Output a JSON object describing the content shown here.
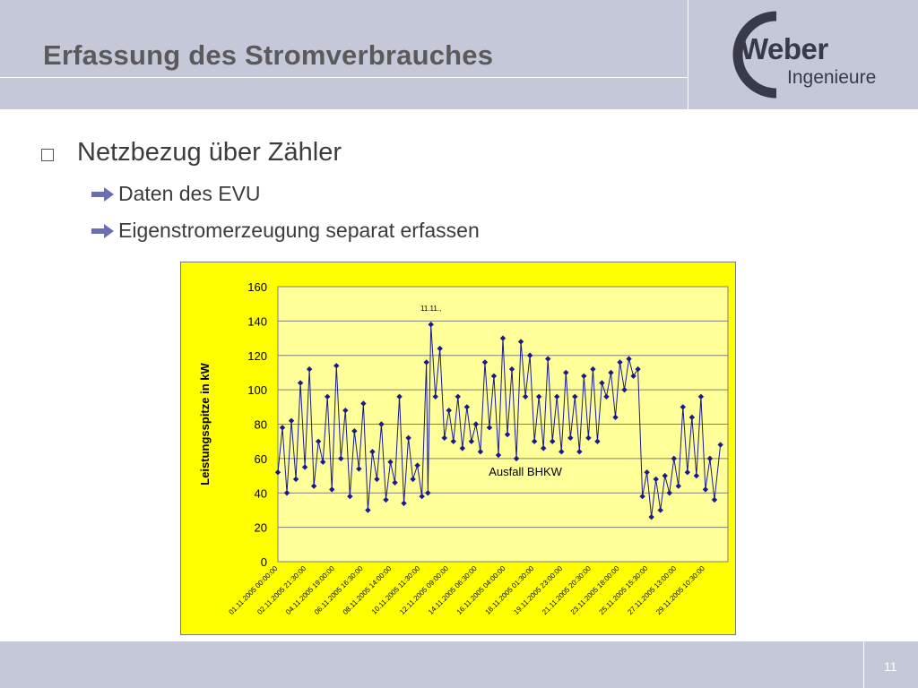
{
  "slide": {
    "title": "Erfassung des Stromverbrauches",
    "page_number": "11"
  },
  "logo": {
    "name": "Weber",
    "subtitle": "Ingenieure",
    "color": "#383a4a"
  },
  "content": {
    "bullet": "Netzbezug über Zähler",
    "sub_bullets": [
      "Daten des EVU",
      "Eigenstromerzeugung separat erfassen"
    ]
  },
  "colors": {
    "header_band": "#c5c8d8",
    "chart_background": "#ffff00",
    "plot_area": "#ffff99",
    "series": "#1a1a8c",
    "arrow": "#6a6fb0"
  },
  "chart_data": {
    "type": "line",
    "title": "",
    "xlabel": "",
    "ylabel": "Leistungsspitze in kW",
    "ylim": [
      0,
      160
    ],
    "yticks": [
      0,
      20,
      40,
      60,
      80,
      100,
      120,
      140,
      160
    ],
    "grid": true,
    "legend": "none",
    "x_tick_labels": [
      "01.11.2005 00:00:00",
      "02.11.2005 21:30:00",
      "04.11.2005 19:00:00",
      "06.11.2005 16:30:00",
      "08.11.2005 14:00:00",
      "10.11.2005 11:30:00",
      "12.11.2005 09:00:00",
      "14.11.2005 06:30:00",
      "16.11.2005 04:00:00",
      "18.11.2005 01:30:00",
      "19.11.2005 23:00:00",
      "21.11.2005 20:30:00",
      "23.11.2005 18:00:00",
      "25.11.2005 15:30:00",
      "27.11.2005 13:00:00",
      "29.11.2005 10:30:00"
    ],
    "annotations": [
      {
        "text": "11.11.,",
        "x_day": 11.2,
        "y": 146
      },
      {
        "text": "Ausfall BHKW",
        "x_day": 17.5,
        "y": 50
      }
    ],
    "series": [
      {
        "x_days": [
          1.0,
          1.3,
          1.6,
          1.9,
          2.2,
          2.5,
          2.8,
          3.1,
          3.4,
          3.7,
          4.0,
          4.3,
          4.6,
          4.9,
          5.2,
          5.5,
          5.8,
          6.1,
          6.4,
          6.7,
          7.0,
          7.3,
          7.6,
          7.9,
          8.2,
          8.5,
          8.8,
          9.1,
          9.4,
          9.7,
          10.0,
          10.3,
          10.6,
          10.9,
          11.0,
          11.2,
          11.5,
          11.8,
          12.1,
          12.4,
          12.7,
          13.0,
          13.3,
          13.6,
          13.9,
          14.2,
          14.5,
          14.8,
          15.1,
          15.4,
          15.7,
          16.0,
          16.3,
          16.6,
          16.9,
          17.2,
          17.5,
          17.8,
          18.1,
          18.4,
          18.7,
          19.0,
          19.3,
          19.6,
          19.9,
          20.2,
          20.5,
          20.8,
          21.1,
          21.4,
          21.7,
          22.0,
          22.3,
          22.6,
          22.9,
          23.2,
          23.5,
          23.8,
          24.1,
          24.4,
          24.7,
          25.0,
          25.3,
          25.6,
          25.9,
          26.2,
          26.5,
          26.8,
          27.1,
          27.4,
          27.7,
          28.0,
          28.3,
          28.6,
          28.9,
          29.2,
          29.5,
          29.8,
          30.1,
          30.5
        ],
        "y": [
          52,
          78,
          40,
          82,
          48,
          104,
          55,
          112,
          44,
          70,
          58,
          96,
          42,
          114,
          60,
          88,
          38,
          76,
          54,
          92,
          30,
          64,
          48,
          80,
          36,
          58,
          46,
          96,
          34,
          72,
          48,
          56,
          38,
          116,
          40,
          138,
          96,
          124,
          72,
          88,
          70,
          96,
          66,
          90,
          70,
          80,
          64,
          116,
          78,
          108,
          62,
          130,
          74,
          112,
          60,
          128,
          96,
          120,
          70,
          96,
          66,
          118,
          70,
          96,
          64,
          110,
          72,
          96,
          64,
          108,
          72,
          112,
          70,
          104,
          96,
          110,
          84,
          116,
          100,
          118,
          108,
          112,
          38,
          52,
          26,
          48,
          30,
          50,
          40,
          60,
          44,
          90,
          52,
          84,
          50,
          96,
          42,
          60,
          36,
          68
        ]
      }
    ]
  }
}
